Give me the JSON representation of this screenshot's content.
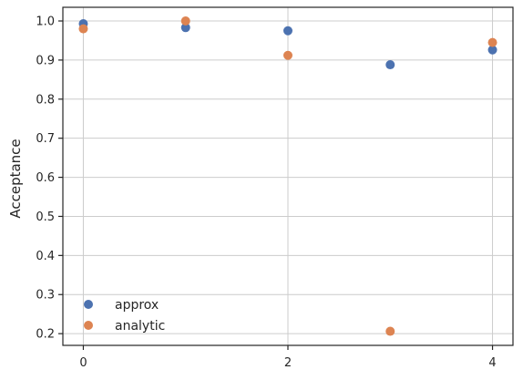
{
  "chart_data": {
    "type": "scatter",
    "title": "",
    "xlabel": "",
    "ylabel": "Acceptance",
    "xlim": [
      -0.2,
      4.2
    ],
    "ylim": [
      0.17,
      1.035
    ],
    "xticks": [
      0,
      2,
      4
    ],
    "xtick_labels": [
      "0",
      "2",
      "4"
    ],
    "yticks": [
      0.2,
      0.3,
      0.4,
      0.5,
      0.6,
      0.7,
      0.8,
      0.9,
      1.0
    ],
    "ytick_labels": [
      "0.2",
      "0.3",
      "0.4",
      "0.5",
      "0.6",
      "0.7",
      "0.8",
      "0.9",
      "1.0"
    ],
    "grid": true,
    "legend_position": "bottom-left",
    "series": [
      {
        "name": "approx",
        "color": "#4c72b0",
        "x": [
          0,
          1,
          2,
          3,
          4
        ],
        "y": [
          0.993,
          0.983,
          0.975,
          0.888,
          0.926
        ]
      },
      {
        "name": "analytic",
        "color": "#dd8452",
        "x": [
          0,
          1,
          2,
          3,
          4
        ],
        "y": [
          0.98,
          1.0,
          0.912,
          0.206,
          0.945
        ]
      }
    ]
  }
}
